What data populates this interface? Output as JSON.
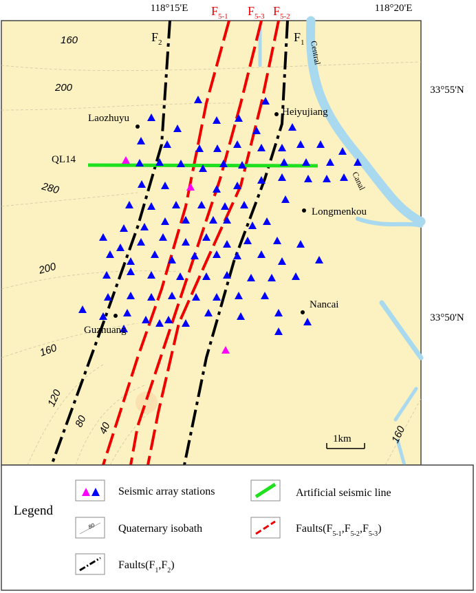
{
  "map": {
    "lon_labels": [
      "118°15'E",
      "118°20'E"
    ],
    "lat_labels": [
      "33°55'N",
      "33°50'N"
    ],
    "faults": [
      {
        "main": "F",
        "sub": "2"
      },
      {
        "main": "F",
        "sub": "5-1"
      },
      {
        "main": "F",
        "sub": "5-3"
      },
      {
        "main": "F",
        "sub": "5-2"
      },
      {
        "main": "F",
        "sub": "1"
      }
    ],
    "river_labels": [
      "Central",
      "Canal"
    ],
    "isobath_labels": [
      "160",
      "200",
      "280",
      "200",
      "160",
      "120",
      "80",
      "40",
      "160"
    ],
    "places": [
      "Laozhuyu",
      "Heiyujiang",
      "Longmenkou",
      "Nancai",
      "Guzhuang"
    ],
    "line_label": "QL14",
    "scale_label": "1km"
  },
  "legend": {
    "title": "Legend",
    "items": [
      {
        "segments": [
          {
            "text": "Seismic array stations"
          }
        ]
      },
      {
        "segments": [
          {
            "text": "Artificial seismic line"
          }
        ]
      },
      {
        "icon_label": "80",
        "segments": [
          {
            "text": "Quaternary isobath"
          }
        ]
      },
      {
        "segments": [
          {
            "text": "Faults(F"
          },
          {
            "text": "5-1",
            "sub": true
          },
          {
            "text": ",F"
          },
          {
            "text": "5-2",
            "sub": true
          },
          {
            "text": ",F"
          },
          {
            "text": "5-3",
            "sub": true
          },
          {
            "text": ")"
          }
        ]
      },
      {
        "segments": [
          {
            "text": "Faults(F"
          },
          {
            "text": "1",
            "sub": true
          },
          {
            "text": ",F"
          },
          {
            "text": "2",
            "sub": true
          },
          {
            "text": ")"
          }
        ]
      }
    ]
  }
}
